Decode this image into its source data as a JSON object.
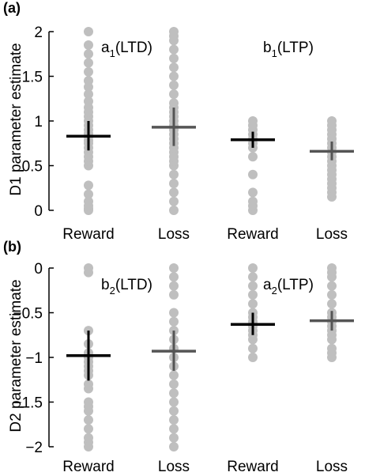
{
  "chart_data": [
    {
      "panel_label": "(a)",
      "type": "scatter",
      "ylabel": "D1 parameter estimate",
      "categories": [
        "Reward",
        "Loss",
        "Reward",
        "Loss"
      ],
      "ylim": [
        0,
        2
      ],
      "yticks": [
        0,
        0.5,
        1,
        1.5,
        2
      ],
      "ytick_labels": [
        "0",
        "0.5",
        "1",
        "1.5",
        "2"
      ],
      "annotations": [
        {
          "base": "a",
          "sub": "1",
          "suffix": "(LTD)",
          "group": 0
        },
        {
          "base": "b",
          "sub": "1",
          "suffix": "(LTP)",
          "group": 2
        }
      ],
      "series": [
        {
          "category": "Reward",
          "points": [
            0,
            0.02,
            0.05,
            0.1,
            0.18,
            0.28,
            0.5,
            0.55,
            0.6,
            0.65,
            0.7,
            0.75,
            0.78,
            0.82,
            0.86,
            0.9,
            0.95,
            1.0,
            1.05,
            1.1,
            1.15,
            1.22,
            1.3,
            1.38,
            1.45,
            1.55,
            1.65,
            1.75,
            1.85,
            2.0
          ],
          "mean": 0.83,
          "err_low": 0.67,
          "err_high": 1.0,
          "mean_color": "#000000"
        },
        {
          "category": "Loss",
          "points": [
            0,
            0.1,
            0.2,
            0.3,
            0.4,
            0.5,
            0.55,
            0.6,
            0.65,
            0.7,
            0.75,
            0.8,
            0.85,
            0.9,
            0.95,
            1.0,
            1.05,
            1.1,
            1.15,
            1.2,
            1.3,
            1.4,
            1.5,
            1.6,
            1.7,
            1.8,
            1.9,
            1.95,
            2.0
          ],
          "mean": 0.93,
          "err_low": 0.72,
          "err_high": 1.15,
          "mean_color": "#555555"
        },
        {
          "category": "Reward",
          "points": [
            0,
            0.05,
            0.1,
            0.2,
            0.4,
            0.6,
            0.7,
            0.75,
            0.8,
            0.85,
            0.9,
            0.95,
            1.0
          ],
          "mean": 0.79,
          "err_low": 0.7,
          "err_high": 0.88,
          "mean_color": "#000000"
        },
        {
          "category": "Loss",
          "points": [
            0.15,
            0.2,
            0.25,
            0.3,
            0.35,
            0.4,
            0.45,
            0.5,
            0.55,
            0.6,
            0.65,
            0.7,
            0.75,
            0.8,
            0.85,
            0.9,
            0.95,
            1.0
          ],
          "mean": 0.66,
          "err_low": 0.56,
          "err_high": 0.77,
          "mean_color": "#555555"
        }
      ]
    },
    {
      "panel_label": "(b)",
      "type": "scatter",
      "ylabel": "D2 parameter estimate",
      "categories": [
        "Reward",
        "Loss",
        "Reward",
        "Loss"
      ],
      "ylim": [
        -2,
        0
      ],
      "yticks": [
        -2,
        -1.5,
        -1,
        -0.5,
        0
      ],
      "ytick_labels": [
        "−2",
        "−1.5",
        "−1",
        "−0.5",
        "0"
      ],
      "annotations": [
        {
          "base": "b",
          "sub": "2",
          "suffix": "(LTD)",
          "group": 0
        },
        {
          "base": "a",
          "sub": "2",
          "suffix": "(LTP)",
          "group": 2
        }
      ],
      "series": [
        {
          "category": "Reward",
          "points": [
            0,
            -0.05,
            -0.7,
            -0.85,
            -0.95,
            -1.0,
            -1.05,
            -1.1,
            -1.15,
            -1.2,
            -1.3,
            -1.35,
            -1.5,
            -1.55,
            -1.6,
            -1.7,
            -1.8,
            -1.9,
            -1.95,
            -2.0
          ],
          "mean": -0.98,
          "err_low": -1.26,
          "err_high": -0.7,
          "mean_color": "#000000"
        },
        {
          "category": "Loss",
          "points": [
            0,
            -0.1,
            -0.2,
            -0.3,
            -0.5,
            -0.6,
            -0.7,
            -0.8,
            -0.9,
            -1.0,
            -1.1,
            -1.2,
            -1.3,
            -1.4,
            -1.5,
            -1.6,
            -1.7,
            -1.8,
            -1.9,
            -2.0
          ],
          "mean": -0.93,
          "err_low": -1.15,
          "err_high": -0.7,
          "mean_color": "#555555"
        },
        {
          "category": "Reward",
          "points": [
            0,
            -0.1,
            -0.2,
            -0.3,
            -0.4,
            -0.5,
            -0.55,
            -0.6,
            -0.65,
            -0.7,
            -0.75,
            -0.8,
            -0.9,
            -1.0
          ],
          "mean": -0.63,
          "err_low": -0.75,
          "err_high": -0.5,
          "mean_color": "#000000"
        },
        {
          "category": "Loss",
          "points": [
            0,
            -0.05,
            -0.1,
            -0.2,
            -0.3,
            -0.4,
            -0.5,
            -0.55,
            -0.6,
            -0.65,
            -0.7,
            -0.75,
            -0.8,
            -0.9,
            -0.95,
            -1.0
          ],
          "mean": -0.59,
          "err_low": -0.7,
          "err_high": -0.48,
          "mean_color": "#555555"
        }
      ]
    }
  ]
}
